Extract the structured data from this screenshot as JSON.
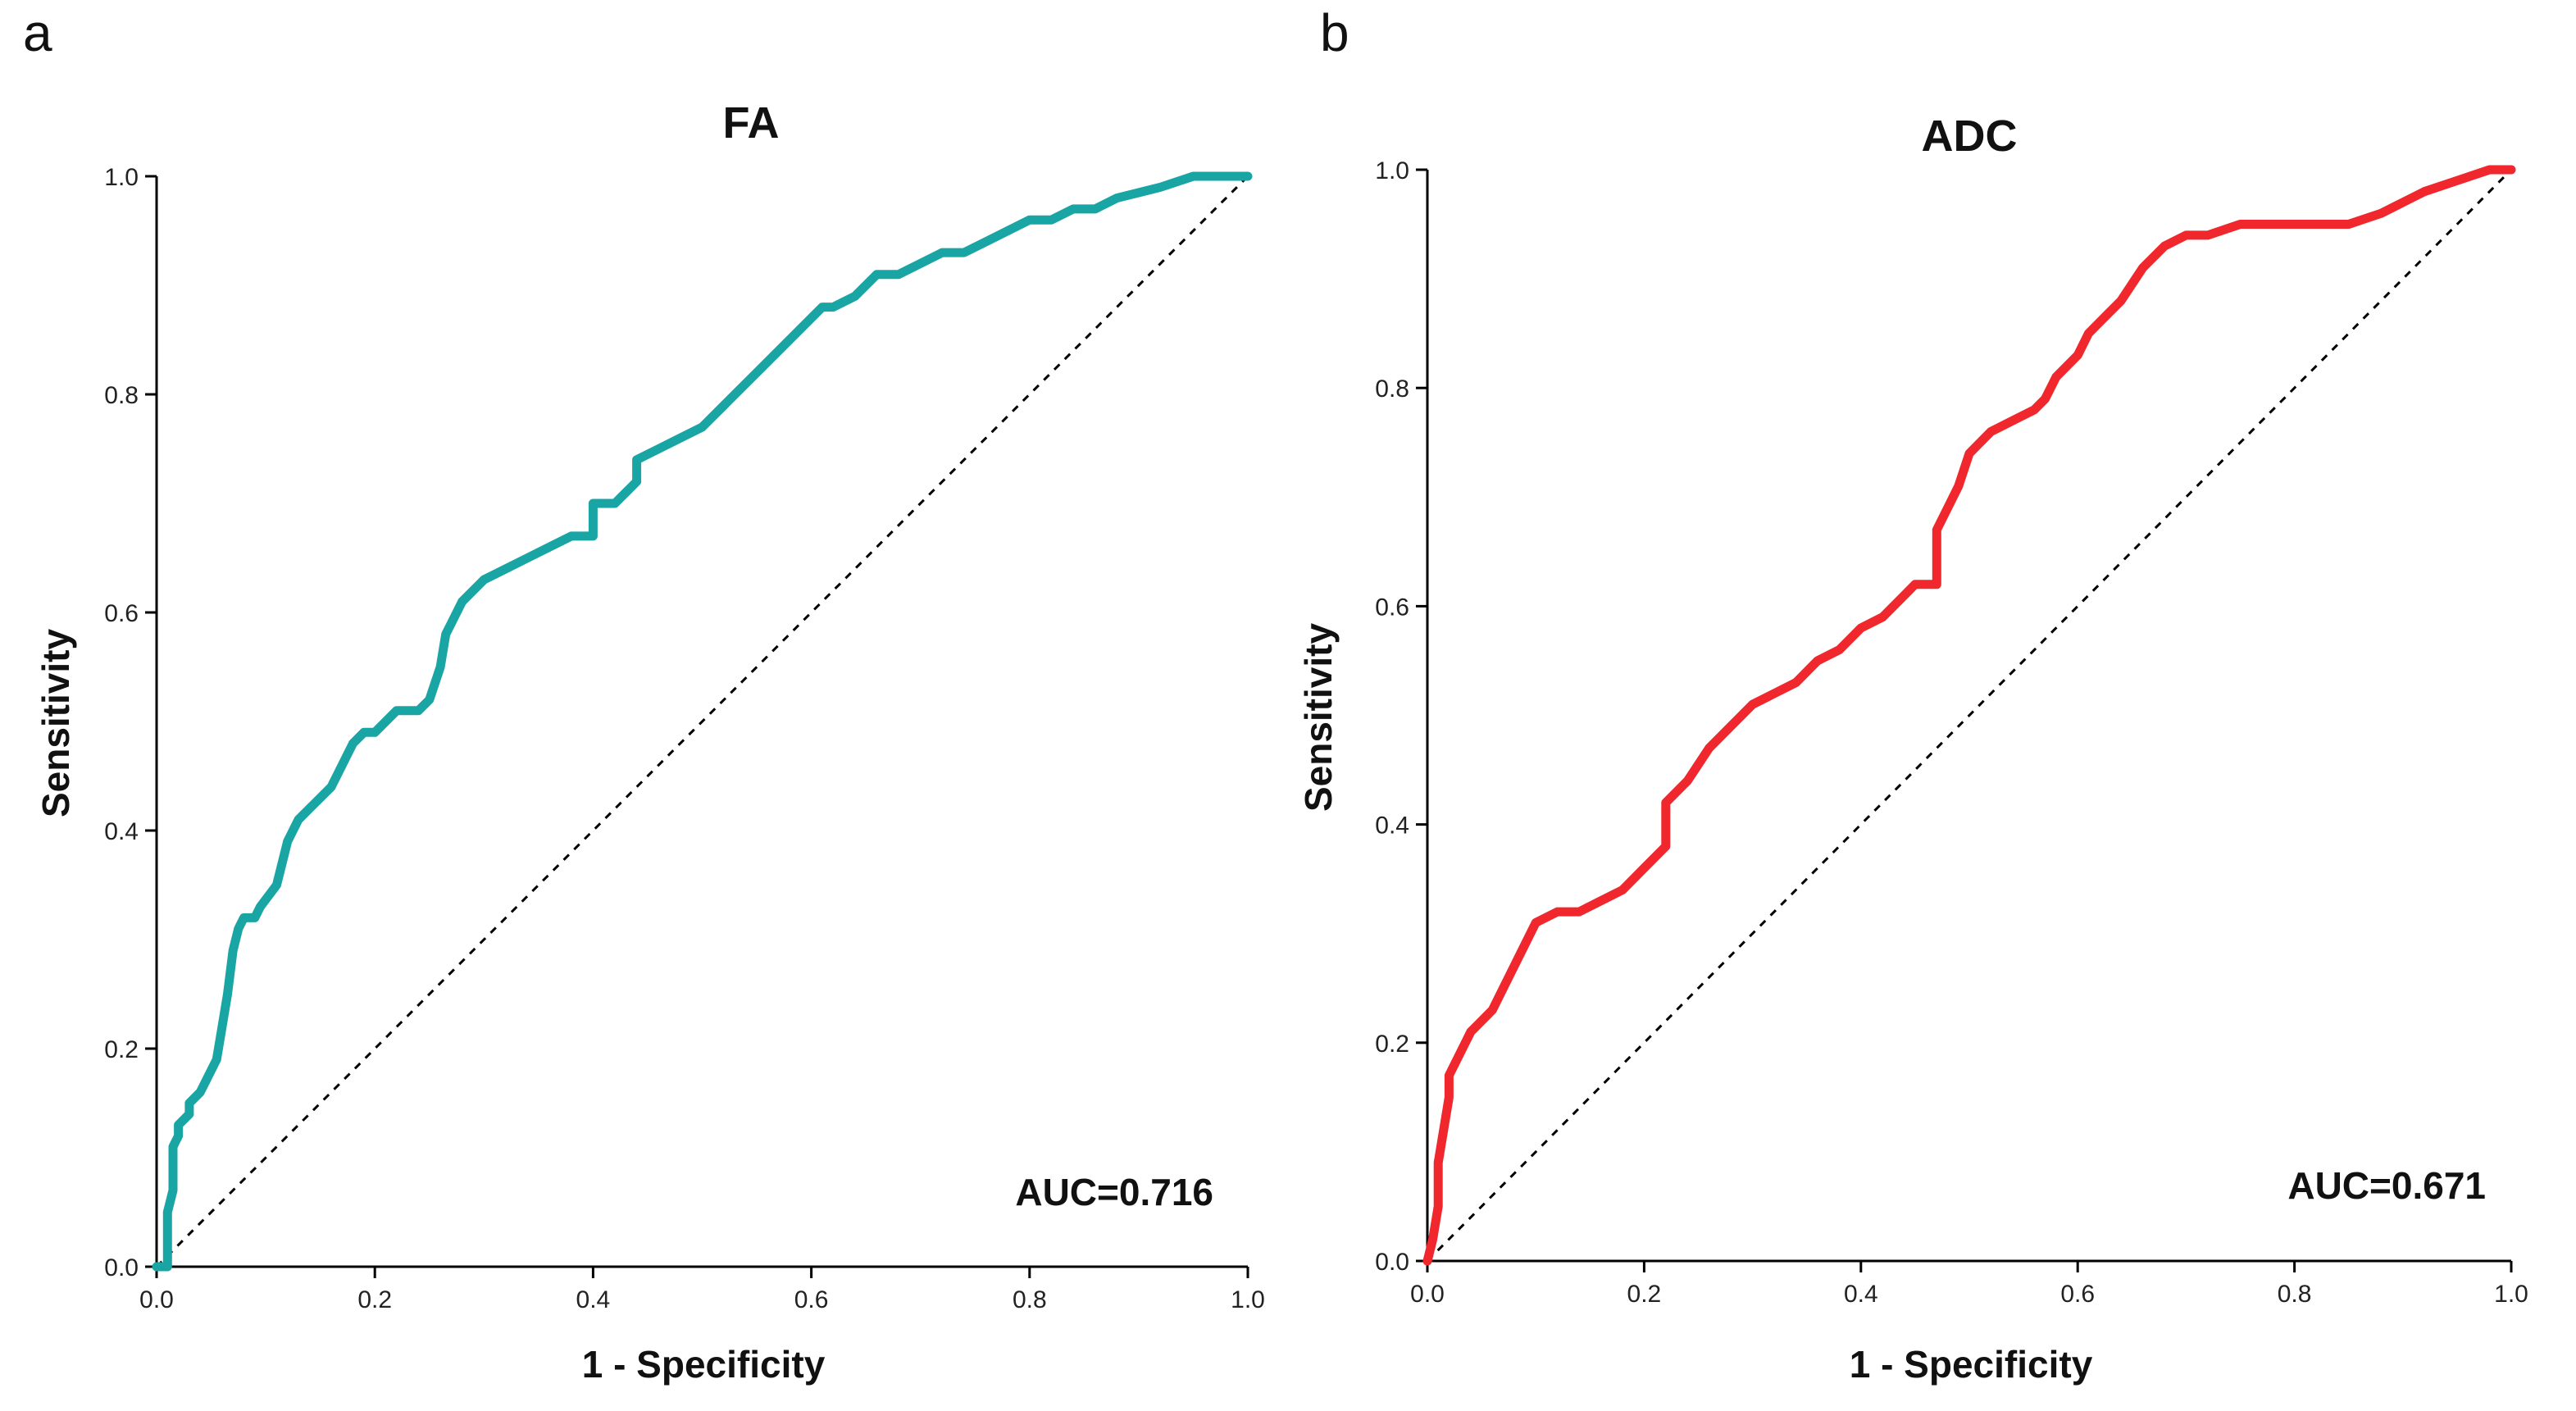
{
  "chart_data": [
    {
      "type": "line",
      "panel_letter": "a",
      "title": "FA",
      "xlabel": "1 - Specificity",
      "ylabel": "Sensitivity",
      "xlim": [
        0,
        1
      ],
      "ylim": [
        0,
        1
      ],
      "x_ticks": [
        "0.0",
        "0.2",
        "0.4",
        "0.6",
        "0.8",
        "1.0"
      ],
      "y_ticks": [
        "0.0",
        "0.2",
        "0.4",
        "0.6",
        "0.8",
        "1.0"
      ],
      "annotation": "AUC=0.716",
      "color": "#1aa5a5",
      "reference_line": {
        "x": [
          0,
          1
        ],
        "y": [
          0,
          1
        ],
        "style": "dotted"
      },
      "series": [
        {
          "name": "FA",
          "x": [
            0.0,
            0.01,
            0.01,
            0.015,
            0.015,
            0.02,
            0.02,
            0.03,
            0.03,
            0.04,
            0.045,
            0.055,
            0.06,
            0.065,
            0.07,
            0.075,
            0.08,
            0.09,
            0.095,
            0.11,
            0.115,
            0.12,
            0.13,
            0.14,
            0.16,
            0.17,
            0.18,
            0.19,
            0.2,
            0.22,
            0.24,
            0.25,
            0.26,
            0.265,
            0.27,
            0.28,
            0.3,
            0.32,
            0.34,
            0.36,
            0.38,
            0.4,
            0.4,
            0.42,
            0.43,
            0.44,
            0.44,
            0.46,
            0.48,
            0.5,
            0.52,
            0.55,
            0.58,
            0.6,
            0.61,
            0.62,
            0.64,
            0.66,
            0.68,
            0.72,
            0.74,
            0.76,
            0.8,
            0.82,
            0.84,
            0.86,
            0.88,
            0.92,
            0.95,
            1.0
          ],
          "y": [
            0.0,
            0.0,
            0.05,
            0.07,
            0.11,
            0.12,
            0.13,
            0.14,
            0.15,
            0.16,
            0.17,
            0.19,
            0.22,
            0.25,
            0.29,
            0.31,
            0.32,
            0.32,
            0.33,
            0.35,
            0.37,
            0.39,
            0.41,
            0.42,
            0.44,
            0.46,
            0.48,
            0.49,
            0.49,
            0.51,
            0.51,
            0.52,
            0.55,
            0.58,
            0.59,
            0.61,
            0.63,
            0.64,
            0.65,
            0.66,
            0.67,
            0.67,
            0.7,
            0.7,
            0.71,
            0.72,
            0.74,
            0.75,
            0.76,
            0.77,
            0.79,
            0.82,
            0.85,
            0.87,
            0.88,
            0.88,
            0.89,
            0.91,
            0.91,
            0.93,
            0.93,
            0.94,
            0.96,
            0.96,
            0.97,
            0.97,
            0.98,
            0.99,
            1.0,
            1.0
          ]
        }
      ]
    },
    {
      "type": "line",
      "panel_letter": "b",
      "title": "ADC",
      "xlabel": "1 - Specificity",
      "ylabel": "Sensitivity",
      "xlim": [
        0,
        1
      ],
      "ylim": [
        0,
        1
      ],
      "x_ticks": [
        "0.0",
        "0.2",
        "0.4",
        "0.6",
        "0.8",
        "1.0"
      ],
      "y_ticks": [
        "0.0",
        "0.2",
        "0.4",
        "0.6",
        "0.8",
        "1.0"
      ],
      "annotation": "AUC=0.671",
      "color": "#f0282d",
      "reference_line": {
        "x": [
          0,
          1
        ],
        "y": [
          0,
          1
        ],
        "style": "dotted"
      },
      "series": [
        {
          "name": "ADC",
          "x": [
            0.0,
            0.005,
            0.01,
            0.01,
            0.015,
            0.02,
            0.02,
            0.03,
            0.04,
            0.05,
            0.06,
            0.07,
            0.08,
            0.09,
            0.1,
            0.12,
            0.14,
            0.16,
            0.18,
            0.2,
            0.21,
            0.22,
            0.22,
            0.24,
            0.26,
            0.28,
            0.3,
            0.32,
            0.34,
            0.36,
            0.38,
            0.4,
            0.42,
            0.44,
            0.45,
            0.46,
            0.47,
            0.47,
            0.48,
            0.49,
            0.5,
            0.52,
            0.54,
            0.56,
            0.57,
            0.58,
            0.6,
            0.61,
            0.62,
            0.64,
            0.66,
            0.68,
            0.7,
            0.72,
            0.75,
            0.8,
            0.85,
            0.88,
            0.9,
            0.92,
            0.95,
            0.98,
            1.0
          ],
          "y": [
            0.0,
            0.02,
            0.05,
            0.09,
            0.12,
            0.15,
            0.17,
            0.19,
            0.21,
            0.22,
            0.23,
            0.25,
            0.27,
            0.29,
            0.31,
            0.32,
            0.32,
            0.33,
            0.34,
            0.36,
            0.37,
            0.38,
            0.42,
            0.44,
            0.47,
            0.49,
            0.51,
            0.52,
            0.53,
            0.55,
            0.56,
            0.58,
            0.59,
            0.61,
            0.62,
            0.62,
            0.62,
            0.67,
            0.69,
            0.71,
            0.74,
            0.76,
            0.77,
            0.78,
            0.79,
            0.81,
            0.83,
            0.85,
            0.86,
            0.88,
            0.91,
            0.93,
            0.94,
            0.94,
            0.95,
            0.95,
            0.95,
            0.96,
            0.97,
            0.98,
            0.99,
            1.0,
            1.0
          ]
        }
      ]
    }
  ]
}
